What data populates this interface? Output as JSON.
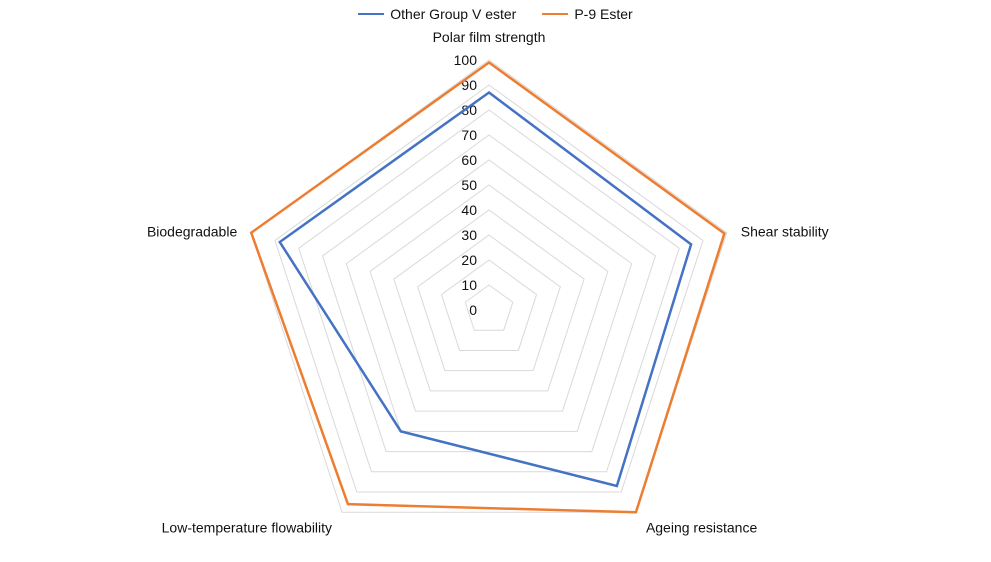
{
  "chart_data": {
    "type": "radar",
    "title": "",
    "axes": [
      "Polar film strength",
      "Shear stability",
      "Ageing resistance",
      "Low-temperature flowability",
      "Biodegradable"
    ],
    "scale": {
      "min": 0,
      "max": 100,
      "step": 10,
      "ticks": [
        "0",
        "10",
        "20",
        "30",
        "40",
        "50",
        "60",
        "70",
        "80",
        "90",
        "100"
      ]
    },
    "grid": true,
    "legend_position": "top",
    "series": [
      {
        "name": "Other Group V ester",
        "color": "#4472C4",
        "values": [
          87,
          85,
          87,
          60,
          88
        ]
      },
      {
        "name": "P-9 Ester",
        "color": "#ED7D31",
        "values": [
          99,
          99,
          100,
          96,
          100
        ]
      }
    ]
  }
}
